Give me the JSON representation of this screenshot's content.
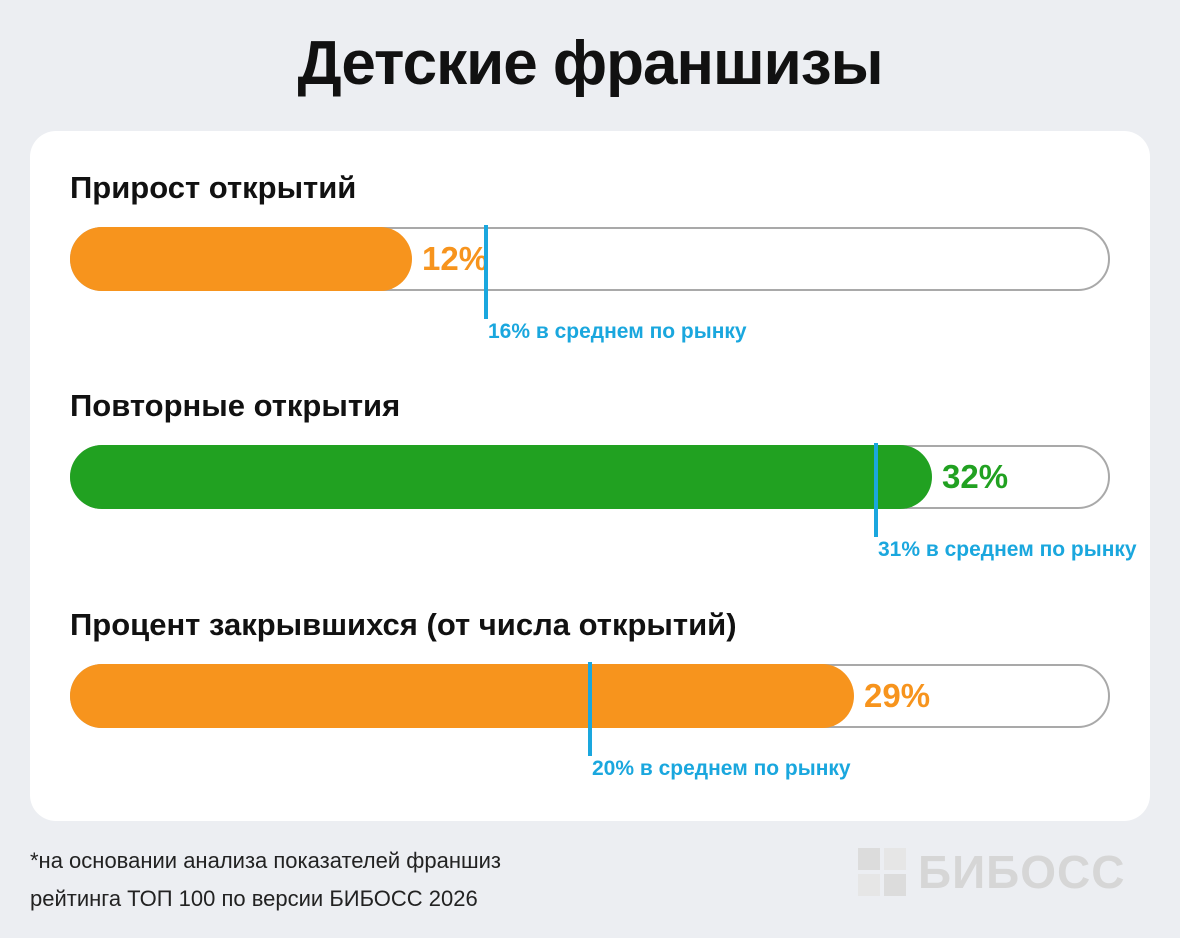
{
  "title": "Детские франшизы",
  "footnote": {
    "line1": "*на основании анализа показателей франшиз",
    "line2": "рейтинга ТОП 100 по версии БИБОСС 2026"
  },
  "logo": {
    "text": "БИБОСС",
    "icon": "bibos-logo-icon"
  },
  "colors": {
    "orange": "#f7941d",
    "green": "#21a121",
    "blue": "#1aa7de",
    "track_border": "#a9a9a9"
  },
  "chart_data": {
    "type": "bar",
    "orientation": "horizontal",
    "xlim": [
      0,
      100
    ],
    "unit": "%",
    "metrics": [
      {
        "label": "Прирост открытий",
        "value": 12,
        "value_label": "12%",
        "color": "#f7941d",
        "avg": 16,
        "avg_label": "16% в среднем по рынку"
      },
      {
        "label": "Повторные открытия",
        "value": 32,
        "value_label": "32%",
        "color": "#21a121",
        "avg": 31,
        "avg_label": "31% в среднем по рынку"
      },
      {
        "label": "Процент закрывшихся (от числа открытий)",
        "value": 29,
        "value_label": "29%",
        "color": "#f7941d",
        "avg": 20,
        "avg_label": "20% в среднем по рынку"
      }
    ]
  }
}
